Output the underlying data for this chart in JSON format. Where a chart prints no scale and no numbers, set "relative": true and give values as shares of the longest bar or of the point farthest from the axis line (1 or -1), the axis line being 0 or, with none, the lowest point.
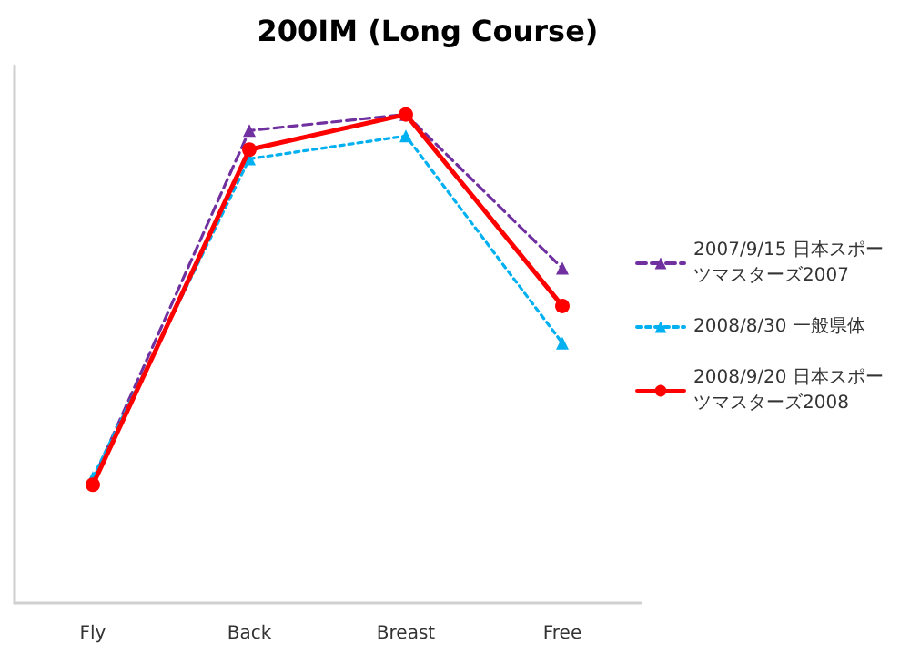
{
  "chart_data": {
    "type": "line",
    "title": "200IM (Long Course)",
    "relative": true,
    "categories": [
      "Fly",
      "Back",
      "Breast",
      "Free"
    ],
    "series": [
      {
        "name": "2007/9/15 日本スポーツマスターズ2007",
        "color": "#7030a0",
        "marker": "triangle",
        "line_style": "dashed",
        "values": [
          0.251,
          0.967,
          1,
          0.685
        ]
      },
      {
        "name": "2008/8/30 一般県体",
        "color": "#00b0f0",
        "marker": "triangle",
        "line_style": "dotted",
        "values": [
          0.257,
          0.909,
          0.956,
          0.532
        ]
      },
      {
        "name": "2008/9/20 日本スポーツマスターズ2008",
        "color": "#ff0000",
        "marker": "circle",
        "line_style": "solid",
        "values": [
          0.242,
          0.928,
          1,
          0.608
        ]
      }
    ],
    "grid": false,
    "legend": "right"
  }
}
